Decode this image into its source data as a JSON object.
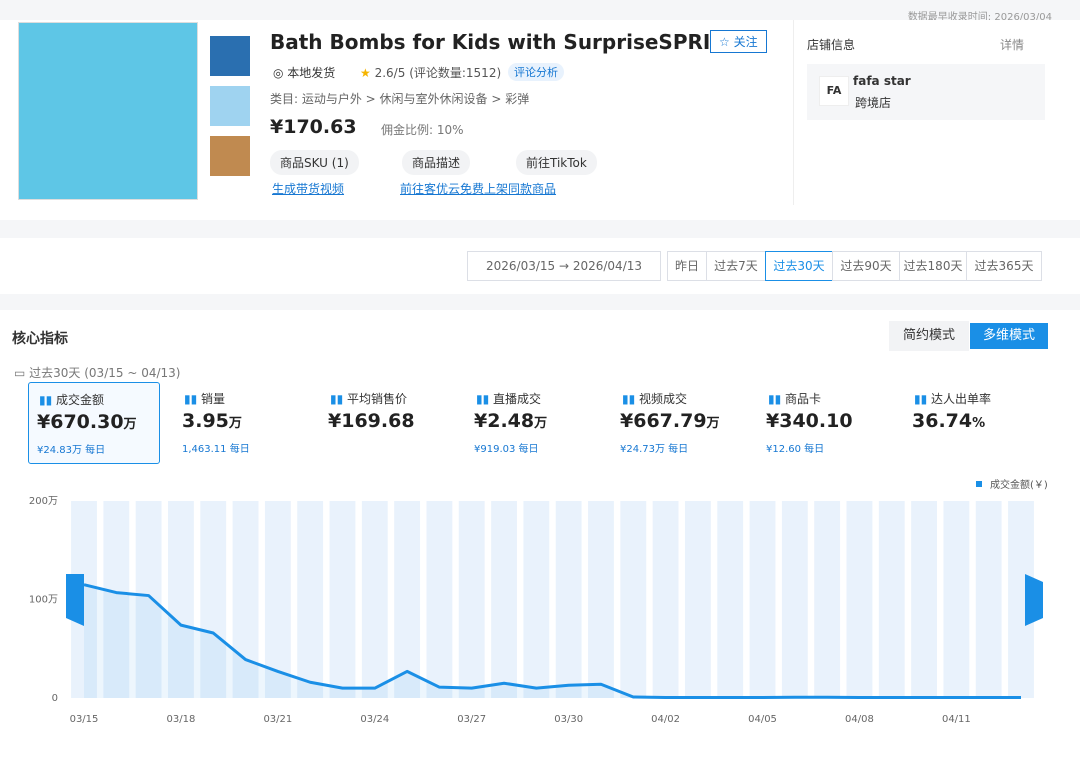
{
  "header": {
    "collected": "数据最早收录时间: 2026/03/04"
  },
  "product": {
    "title": "Bath Bombs for Kids with SurpriseSPRI",
    "follow": "关注",
    "shipping": "本地发货",
    "rating": "2.6/5",
    "reviews": "(评论数量:1512)",
    "review_analysis": "评论分析",
    "category": "类目: 运动与户外 > 休闲与室外休闲设备 > 彩弹",
    "price": "¥170.63",
    "commission": "佣金比例: 10%",
    "buttons": [
      "商品SKU (1)",
      "商品描述",
      "前往TikTok"
    ],
    "links": [
      "生成带货视频",
      "前往客优云免费上架同款商品"
    ]
  },
  "shop": {
    "heading": "店铺信息",
    "details": "详情",
    "name": "fafa star",
    "type": "跨境店"
  },
  "filters": {
    "start": "2026/03/15",
    "end": "2026/04/13",
    "tabs": [
      "昨日",
      "过去7天",
      "过去30天",
      "过去90天",
      "过去180天",
      "过去365天"
    ],
    "active": 2
  },
  "metrics": {
    "heading": "核心指标",
    "modes": [
      "简约模式",
      "多维模式"
    ],
    "period": "过去30天 (03/15 ~ 04/13)",
    "items": [
      {
        "name": "成交金额",
        "value": "¥670.30",
        "unit": "万",
        "daily": "¥24.83万 每日"
      },
      {
        "name": "销量",
        "value": "3.95",
        "unit": "万",
        "daily": "1,463.11 每日"
      },
      {
        "name": "平均销售价",
        "value": "¥169.68"
      },
      {
        "name": "直播成交",
        "value": "¥2.48",
        "unit": "万",
        "daily": "¥919.03 每日"
      },
      {
        "name": "视频成交",
        "value": "¥667.79",
        "unit": "万",
        "daily": "¥24.73万 每日"
      },
      {
        "name": "商品卡",
        "value": "¥340.10",
        "daily": "¥12.60 每日"
      },
      {
        "name": "达人出单率",
        "value": "36.74",
        "unit": "%"
      }
    ]
  },
  "chart_data": {
    "type": "line",
    "categories": [
      "03/15",
      null,
      null,
      "03/18",
      null,
      null,
      "03/21",
      null,
      null,
      "03/24",
      null,
      null,
      "03/27",
      null,
      null,
      "03/30",
      null,
      null,
      "04/02",
      null,
      null,
      "04/05",
      null,
      null,
      "04/08",
      null,
      null,
      "04/11",
      null,
      null
    ],
    "series": [
      {
        "name": "成交金额(￥)",
        "color": "#1a8fe6",
        "values": [
          115,
          107,
          104,
          74,
          66,
          39,
          27,
          16,
          10,
          10,
          27,
          11,
          10,
          15,
          10,
          13,
          14,
          1,
          0.5,
          0.5,
          0.5,
          0.5,
          0.8,
          0.8,
          0.5,
          0.5,
          0.5,
          0.5,
          0.5,
          0.5
        ]
      }
    ],
    "ylim": [
      0,
      200
    ],
    "yticks": [
      {
        "value": 0,
        "label": "0"
      },
      {
        "value": 100,
        "label": "100万"
      },
      {
        "value": 200,
        "label": "200万"
      }
    ]
  }
}
